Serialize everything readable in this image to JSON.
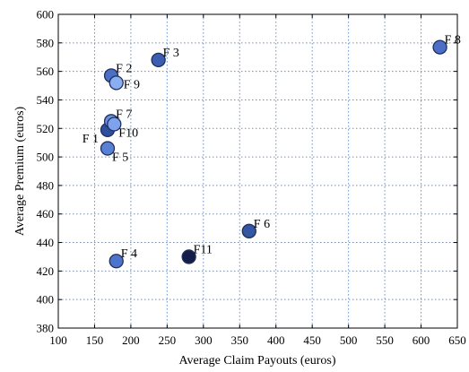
{
  "chart_data": {
    "type": "scatter",
    "title": "",
    "xlabel": "Average Claim Payouts (euros)",
    "ylabel": "Average Premium (euros)",
    "xlim": [
      100,
      650
    ],
    "ylim": [
      380,
      600
    ],
    "xticks": [
      100,
      150,
      200,
      250,
      300,
      350,
      400,
      450,
      500,
      550,
      600,
      650
    ],
    "yticks": [
      380,
      400,
      420,
      440,
      460,
      480,
      500,
      520,
      540,
      560,
      580,
      600
    ],
    "grid": true,
    "points": [
      {
        "label": "F 1",
        "x": 168,
        "y": 519,
        "color": "#2c4f9e",
        "label_pos": "left"
      },
      {
        "label": "F 2",
        "x": 173,
        "y": 557,
        "color": "#4a6fc4",
        "label_pos": "right-up"
      },
      {
        "label": "F 3",
        "x": 238,
        "y": 568,
        "color": "#3a5eb0",
        "label_pos": "right-up"
      },
      {
        "label": "F 4",
        "x": 180,
        "y": 427,
        "color": "#4c74cc",
        "label_pos": "right-up"
      },
      {
        "label": "F 5",
        "x": 168,
        "y": 506,
        "color": "#5a80d6",
        "label_pos": "right-down"
      },
      {
        "label": "F 6",
        "x": 363,
        "y": 448,
        "color": "#3556a3",
        "label_pos": "right-up"
      },
      {
        "label": "F 7",
        "x": 173,
        "y": 525,
        "color": "#6b8fe0",
        "label_pos": "right-up"
      },
      {
        "label": "F 8",
        "x": 626,
        "y": 577,
        "color": "#4a6fc4",
        "label_pos": "right-up"
      },
      {
        "label": "F 9",
        "x": 180,
        "y": 552,
        "color": "#8aaef2",
        "label_pos": "right"
      },
      {
        "label": "F10",
        "x": 177,
        "y": 523,
        "color": "#7fa2ec",
        "label_pos": "right-down"
      },
      {
        "label": "F11",
        "x": 280,
        "y": 430,
        "color": "#141c4a",
        "label_pos": "right-up"
      }
    ]
  }
}
